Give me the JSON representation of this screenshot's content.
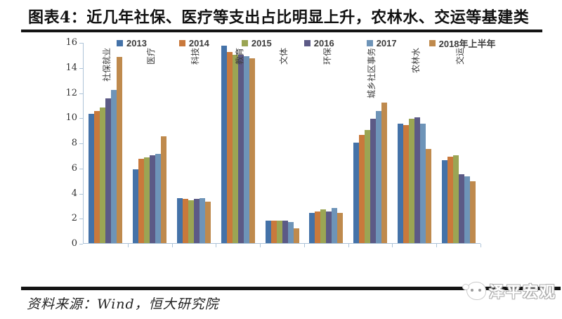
{
  "header": {
    "title": "图表4：近几年社保、医疗等支出占比明显上升，农林水、交运等基建类"
  },
  "footer": {
    "source": "资料来源：Wind，恒大研究院",
    "logo_text": "泽平宏观",
    "logo_icon": "chat-bubble-face-icon"
  },
  "chart_data": {
    "type": "bar",
    "title": "",
    "xlabel": "",
    "ylabel": "",
    "ylim": [
      0,
      16
    ],
    "ytick_step": 2,
    "grid": false,
    "legend_position": "top",
    "categories": [
      "社保就业",
      "医疗",
      "科技",
      "教育",
      "文体",
      "环保",
      "城乡社区事务",
      "农林水",
      "交运"
    ],
    "series": [
      {
        "name": "2013",
        "color": "#4472a8",
        "values": [
          10.3,
          5.9,
          3.6,
          15.7,
          1.8,
          2.4,
          8.0,
          9.5,
          6.6
        ]
      },
      {
        "name": "2014",
        "color": "#c9793c",
        "values": [
          10.5,
          6.7,
          3.5,
          15.2,
          1.8,
          2.5,
          8.6,
          9.4,
          6.9
        ]
      },
      {
        "name": "2015",
        "color": "#9ba554",
        "values": [
          10.8,
          6.8,
          3.4,
          15.0,
          1.8,
          2.7,
          9.0,
          9.9,
          7.0
        ]
      },
      {
        "name": "2016",
        "color": "#5c5a86",
        "values": [
          11.5,
          7.0,
          3.5,
          15.0,
          1.8,
          2.5,
          9.9,
          10.0,
          5.5
        ]
      },
      {
        "name": "2017",
        "color": "#6e94b8",
        "values": [
          12.2,
          7.1,
          3.6,
          14.9,
          1.7,
          2.8,
          10.5,
          9.5,
          5.3
        ]
      },
      {
        "name": "2018年上半年",
        "color": "#bf8a4d",
        "values": [
          14.8,
          8.5,
          3.3,
          14.7,
          1.2,
          2.4,
          11.2,
          7.5,
          4.9
        ]
      }
    ]
  }
}
